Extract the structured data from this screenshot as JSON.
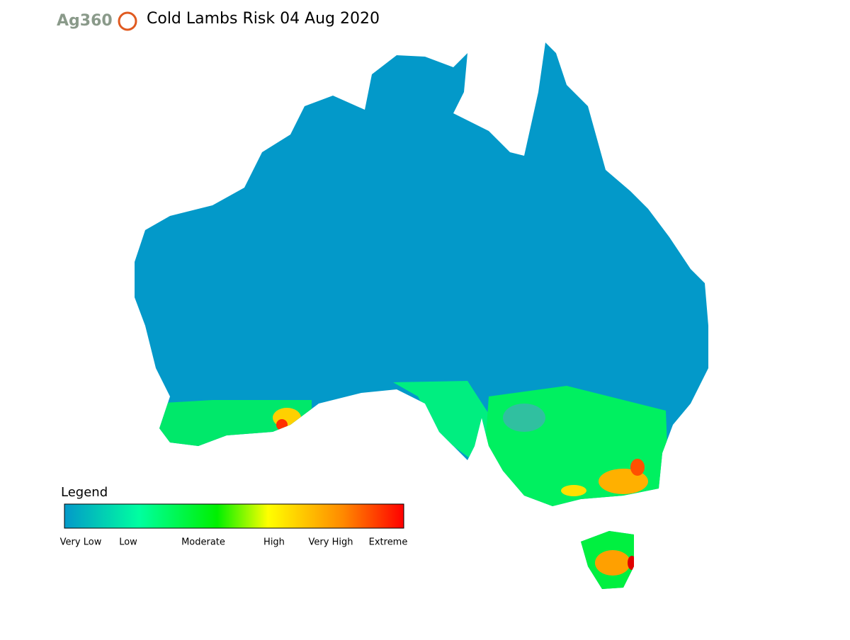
{
  "header": {
    "logo": "Ag360",
    "title": "Cold Lambs Risk 04 Aug 2020"
  },
  "legend": {
    "title": "Legend",
    "labels": [
      "Very Low",
      "Low",
      "Moderate",
      "High",
      "Very High",
      "Extreme"
    ]
  }
}
